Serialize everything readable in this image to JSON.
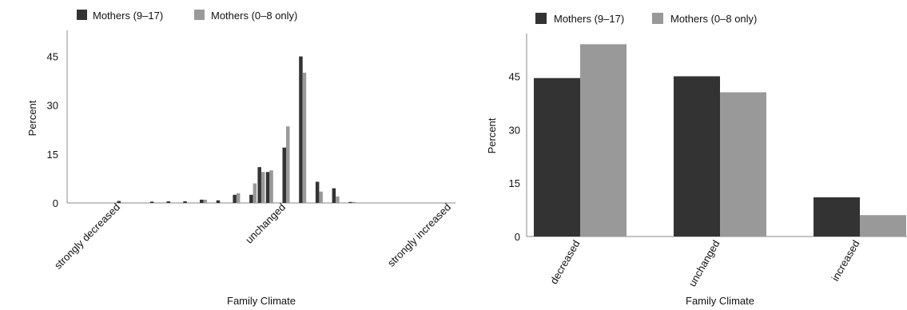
{
  "chart_data": [
    {
      "type": "bar",
      "xlabel": "Family Climate",
      "ylabel": "Percent",
      "yticks": [
        0,
        15,
        30,
        45
      ],
      "ylim": [
        0,
        53
      ],
      "xlim": [
        -10,
        10
      ],
      "xtick_labels": [
        {
          "x": -10,
          "label": "strongly decreased"
        },
        {
          "x": 0,
          "label": "unchanged"
        },
        {
          "x": 10,
          "label": "strongly increased"
        }
      ],
      "legend": "top-left",
      "grid": false,
      "x": [
        -7,
        -6,
        -5,
        -4,
        -3,
        -2,
        -1,
        0,
        1,
        2,
        3
      ],
      "series": [
        {
          "name": "Mothers (9–17)",
          "color": "#333333",
          "values": [
            0.5,
            0.5,
            1.0,
            0.8,
            2.5,
            2.5,
            9.5,
            17.0,
            45.0,
            6.5,
            4.5
          ]
        },
        {
          "name": "Mothers (0–8 only)",
          "color": "#999999",
          "values": [
            0.0,
            0.0,
            1.0,
            0.0,
            3.0,
            6.0,
            10.0,
            23.5,
            40.0,
            3.5,
            2.0
          ]
        }
      ],
      "extra_bars": [
        {
          "x": -10.0,
          "values": [
            0.6,
            0.0
          ]
        },
        {
          "x": -8.0,
          "values": [
            0.4,
            0.0
          ]
        },
        {
          "x": -1.5,
          "values": [
            11.0,
            9.5
          ]
        },
        {
          "x": 4.0,
          "values": [
            0.3,
            0.3
          ]
        }
      ]
    },
    {
      "type": "bar",
      "xlabel": "Family Climate",
      "ylabel": "Percent",
      "yticks": [
        0,
        15,
        30,
        45
      ],
      "ylim": [
        0,
        57
      ],
      "categories": [
        "decreased",
        "unchanged",
        "increased"
      ],
      "legend": "top-left",
      "grid": false,
      "series": [
        {
          "name": "Mothers (9–17)",
          "color": "#333333",
          "values": [
            44.5,
            45.0,
            11.0
          ]
        },
        {
          "name": "Mothers (0–8 only)",
          "color": "#999999",
          "values": [
            54.0,
            40.5,
            6.0
          ]
        }
      ]
    }
  ]
}
